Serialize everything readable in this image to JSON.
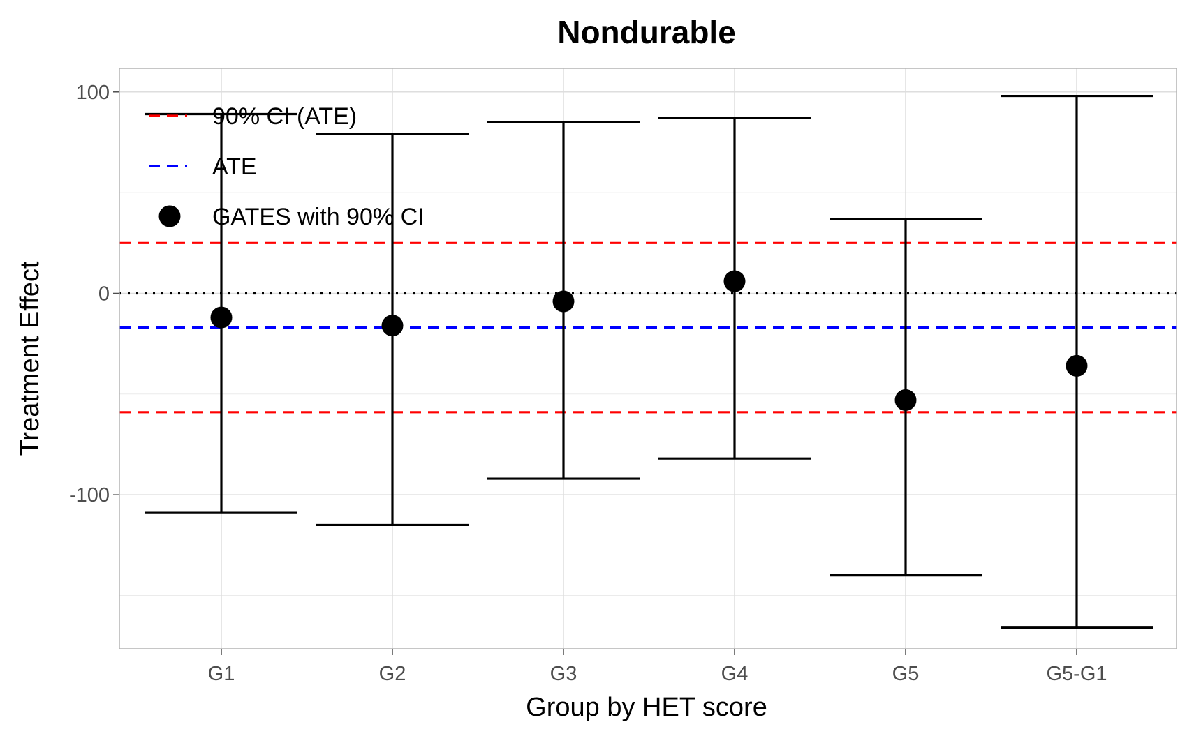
{
  "chart_data": {
    "type": "scatter",
    "title": "Nondurable",
    "xlabel": "Group by HET score",
    "ylabel": "Treatment Effect",
    "categories": [
      "G1",
      "G2",
      "G3",
      "G4",
      "G5",
      "G5-G1"
    ],
    "ylim": [
      -180,
      110
    ],
    "y_ticks": [
      100,
      0,
      -100
    ],
    "y_tick_labels": [
      "100",
      "0",
      "-100"
    ],
    "grid": true,
    "series": [
      {
        "name": "GATES with 90% CI",
        "points": [
          {
            "x": "G1",
            "estimate": -12,
            "lower": -109,
            "upper": 89
          },
          {
            "x": "G2",
            "estimate": -16,
            "lower": -115,
            "upper": 79
          },
          {
            "x": "G3",
            "estimate": -4,
            "lower": -92,
            "upper": 85
          },
          {
            "x": "G4",
            "estimate": 6,
            "lower": -82,
            "upper": 87
          },
          {
            "x": "G5",
            "estimate": -53,
            "lower": -140,
            "upper": 37
          },
          {
            "x": "G5-G1",
            "estimate": -36,
            "lower": -166,
            "upper": 98
          }
        ]
      }
    ],
    "reference_lines": [
      {
        "name": "90% CI (ATE)",
        "y": 25,
        "color": "#ff0000",
        "style": "dashed"
      },
      {
        "name": "90% CI (ATE)",
        "y": -59,
        "color": "#ff0000",
        "style": "dashed"
      },
      {
        "name": "ATE",
        "y": -17,
        "color": "#0000ff",
        "style": "dashed"
      },
      {
        "name": "zero",
        "y": 0,
        "color": "#000000",
        "style": "dotted"
      }
    ],
    "legend": {
      "position": "top-left",
      "items": [
        {
          "label": "90% CI (ATE)",
          "symbol": "dashed-line",
          "color": "#ff0000"
        },
        {
          "label": "ATE",
          "symbol": "dashed-line",
          "color": "#0000ff"
        },
        {
          "label": "GATES with 90% CI",
          "symbol": "dot",
          "color": "#000000"
        }
      ]
    }
  }
}
